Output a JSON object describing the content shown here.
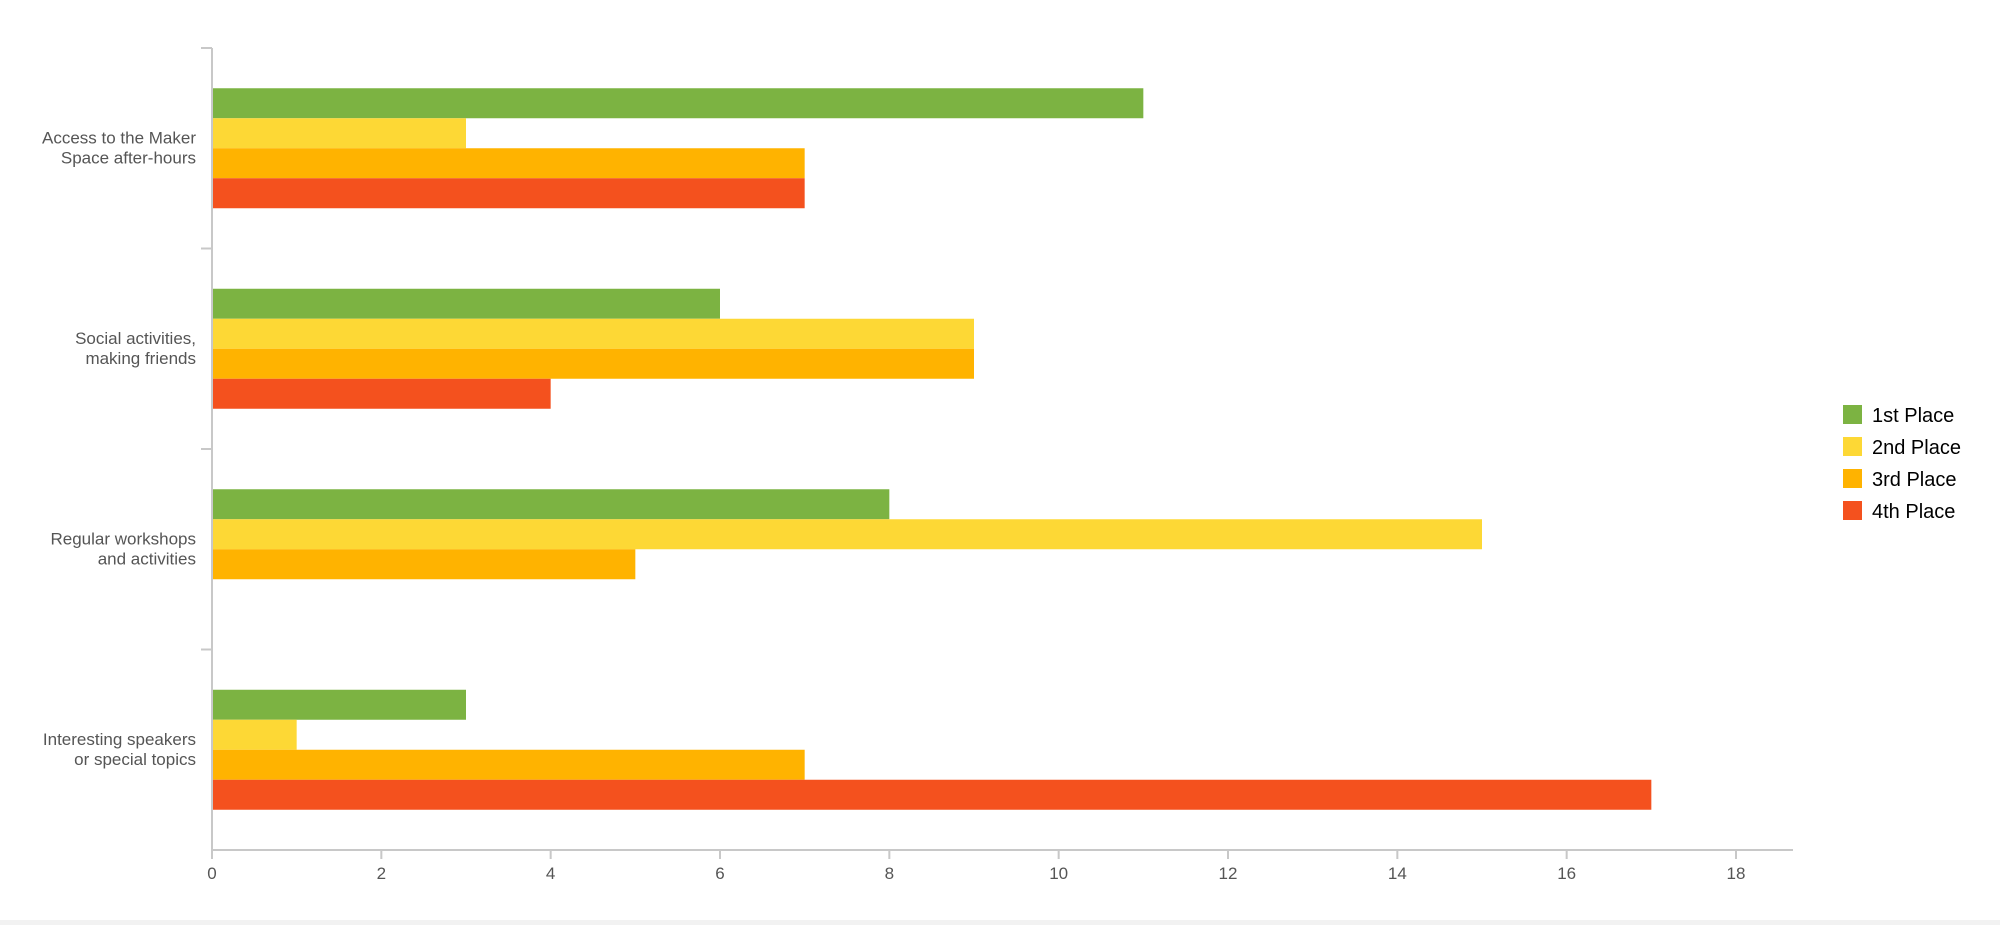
{
  "chart_data": {
    "type": "bar",
    "orientation": "horizontal",
    "title": "",
    "xlabel": "",
    "ylabel": "",
    "categories": [
      [
        "Access to the Maker",
        "Space after-hours"
      ],
      [
        "Social activities,",
        "making friends"
      ],
      [
        "Regular workshops",
        "and activities"
      ],
      [
        "Interesting speakers",
        "or special topics"
      ]
    ],
    "series": [
      {
        "name": "1st Place",
        "color": "#7cb342",
        "values": [
          11,
          6,
          8,
          3
        ]
      },
      {
        "name": "2nd Place",
        "color": "#fdd835",
        "values": [
          3,
          9,
          15,
          1
        ]
      },
      {
        "name": "3rd Place",
        "color": "#ffb300",
        "values": [
          7,
          9,
          5,
          7
        ]
      },
      {
        "name": "4th Place",
        "color": "#f4511e",
        "values": [
          7,
          4,
          0,
          17
        ]
      }
    ],
    "xlim": [
      0,
      18
    ],
    "xticks": [
      0,
      2,
      4,
      6,
      8,
      10,
      12,
      14,
      16,
      18
    ],
    "grid": false,
    "legend_position": "right"
  }
}
